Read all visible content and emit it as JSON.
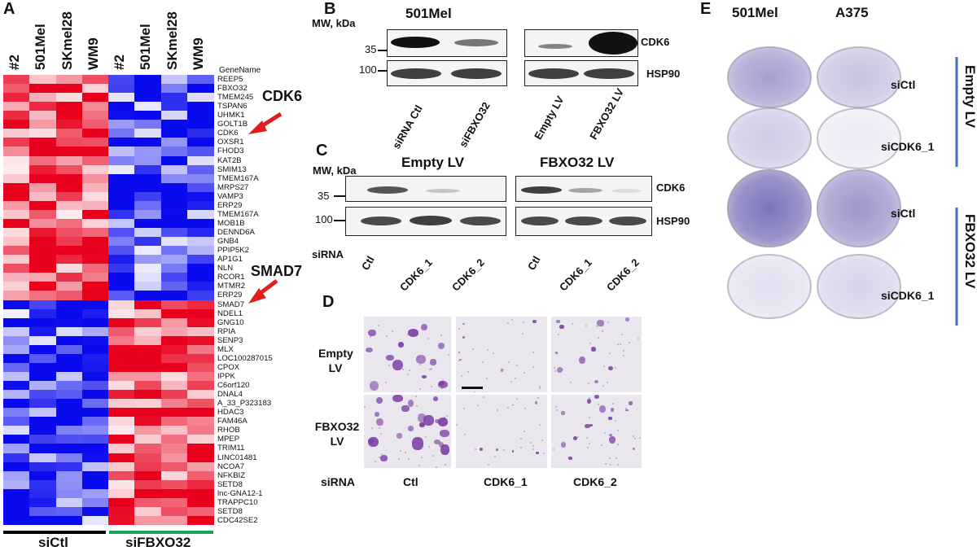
{
  "panels": {
    "a": "A",
    "b": "B",
    "c": "C",
    "d": "D",
    "e": "E"
  },
  "heatmap": {
    "column_labels": [
      "#2",
      "501Mel",
      "SKmel28",
      "WM9",
      "#2",
      "501Mel",
      "SKmel28",
      "WM9"
    ],
    "gene_header": "GeneName",
    "genes": [
      "REEP5",
      "FBXO32",
      "TMEM245",
      "TSPAN6",
      "UHMK1",
      "GOLT1B",
      "CDK6",
      "OXSR1",
      "FHOD3",
      "KAT2B",
      "SMIM13",
      "TMEM167A",
      "MRPS27",
      "VAMP3",
      "ERP29",
      "TMEM167A",
      "MOB1B",
      "DENND6A",
      "GNB4",
      "PPIP5K2",
      "AP1G1",
      "NLN",
      "RCOR1",
      "MTMR2",
      "ERP29",
      "SMAD7",
      "NDEL1",
      "GNG10",
      "RPIA",
      "SENP3",
      "MLX",
      "LOC100287015",
      "CPOX",
      "IPPK",
      "C6orf120",
      "DNAL4",
      "A_33_P323183",
      "HDAC3",
      "FAM46A",
      "RHOB",
      "MPEP",
      "TRIM11",
      "LINC01481",
      "NCOA7",
      "NFKBIZ",
      "SETD8",
      "lnc-GNA12-1",
      "TRAPPC10",
      "SETD8",
      "CDC42SE2"
    ],
    "callouts": [
      "CDK6",
      "SMAD7"
    ],
    "group_labels": [
      "siCtl",
      "siFBXO32"
    ],
    "group_colors": [
      "#000000",
      "#19a35a"
    ],
    "colors": {
      "high": "#e8001c",
      "low": "#0a0aee",
      "mid": "#ffffff",
      "arrow": "#e11d1d"
    }
  },
  "panel_b": {
    "title": "501Mel",
    "mw_label": "MW, kDa",
    "markers": [
      "35",
      "100"
    ],
    "right_labels": [
      "CDK6",
      "HSP90"
    ],
    "lanes": [
      "siRNA Ctl",
      "siFBXO32",
      "Empty LV",
      "FBXO32 LV"
    ]
  },
  "panel_c": {
    "mw_label": "MW, kDa",
    "group_titles": [
      "Empty LV",
      "FBXO32 LV"
    ],
    "markers": [
      "35",
      "100"
    ],
    "right_labels": [
      "CDK6",
      "HSP90"
    ],
    "row_label": "siRNA",
    "lanes": [
      "Ctl",
      "CDK6_1",
      "CDK6_2",
      "Ctl",
      "CDK6_1",
      "CDK6_2"
    ]
  },
  "panel_d": {
    "row_labels": [
      "Empty LV",
      "FBXO32 LV"
    ],
    "bottom_row_label": "siRNA",
    "col_labels": [
      "Ctl",
      "CDK6_1",
      "CDK6_2"
    ],
    "stain_color": "#7b3fa6"
  },
  "panel_e": {
    "col_titles": [
      "501Mel",
      "A375"
    ],
    "row_labels": [
      "siCtl",
      "siCDK6_1",
      "siCtl",
      "siCDK6_1"
    ],
    "side_labels": [
      "Empty LV",
      "FBXO32 LV"
    ],
    "colors": {
      "stain": "#4a3fa0",
      "bracket": "#3f6fc4"
    }
  }
}
